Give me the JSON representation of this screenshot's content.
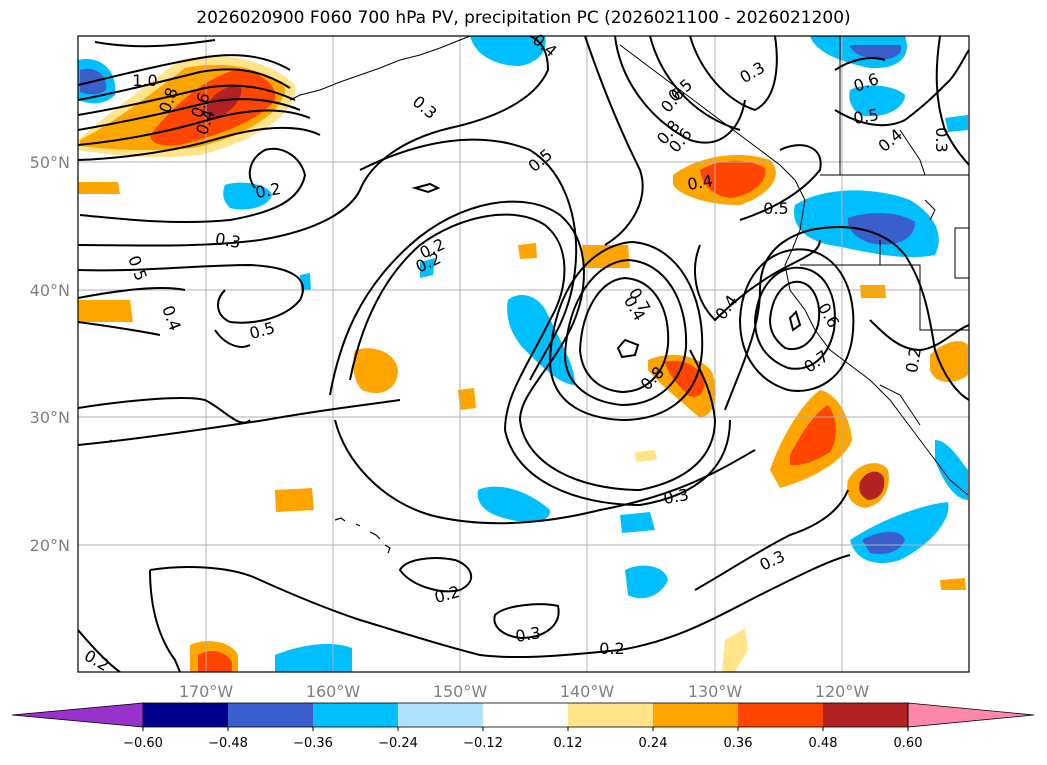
{
  "title": "2026020900 F060 700 hPa PV, precipitation PC (2026021100 - 2026021200)",
  "map": {
    "lon_labels": [
      "170°W",
      "160°W",
      "150°W",
      "140°W",
      "130°W",
      "120°W"
    ],
    "lat_labels": [
      "50°N",
      "40°N",
      "30°N",
      "20°N"
    ]
  },
  "contour_labels": [
    "1.0",
    "0.8",
    "0.6",
    "0.4",
    "0.3",
    "0.2",
    "0.3",
    "0.5",
    "0.4",
    "0.5",
    "0.4",
    "0.5",
    "0.2",
    "0.2",
    "0.5",
    "0.6",
    "0.8",
    "0.6",
    "0.7",
    "0.4",
    "0.8",
    "0.4",
    "0.3",
    "0.6",
    "0.5",
    "0.4",
    "0.3",
    "0.5",
    "0.4",
    "0.6",
    "0.7",
    "0.2",
    "0.3",
    "0.3",
    "0.2",
    "0.3",
    "0.2",
    "0.2"
  ],
  "colorbar": {
    "labels": [
      "−0.60",
      "−0.48",
      "−0.36",
      "−0.24",
      "−0.12",
      "0.12",
      "0.24",
      "0.36",
      "0.48",
      "0.60"
    ],
    "colors": [
      "#9932cc",
      "#00008b",
      "#3a5fcd",
      "#00bfff",
      "#b0e2ff",
      "#ffffff",
      "#ffe48a",
      "#ffa500",
      "#ff4500",
      "#b22222",
      "#ff88aa"
    ]
  }
}
